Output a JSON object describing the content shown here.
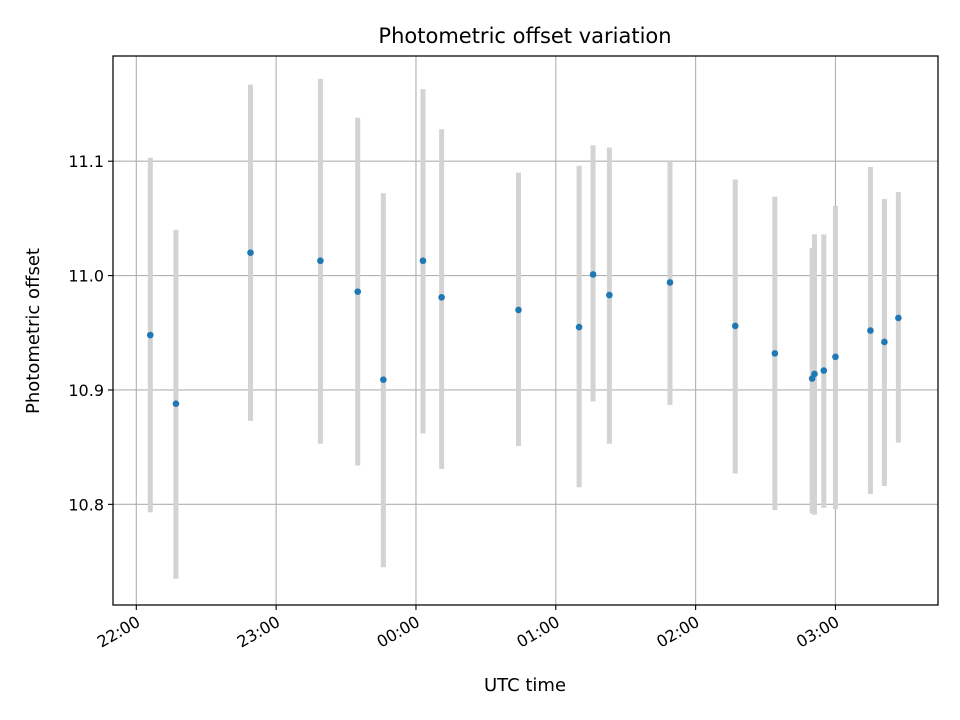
{
  "chart_data": {
    "type": "scatter",
    "title": "Photometric offset variation",
    "xlabel": "UTC time",
    "ylabel": "Photometric offset",
    "x_axis_type": "time",
    "xlim": [
      "21:50",
      "03:44"
    ],
    "ylim": [
      10.712,
      11.192
    ],
    "x_ticks": [
      "22:00",
      "23:00",
      "00:00",
      "01:00",
      "02:00",
      "03:00"
    ],
    "y_ticks": [
      10.8,
      10.9,
      11.0,
      11.1
    ],
    "y_tick_labels": [
      "10.8",
      "10.9",
      "11.0",
      "11.1"
    ],
    "grid": true,
    "colors": {
      "points": "#1f77b4",
      "error_bars": "#d3d3d3",
      "grid": "#b0b0b0",
      "frame": "#000000"
    },
    "points": [
      {
        "time": "22:06",
        "y": 10.948,
        "err_low": 10.793,
        "err_high": 11.103
      },
      {
        "time": "22:17",
        "y": 10.888,
        "err_low": 10.735,
        "err_high": 11.04
      },
      {
        "time": "22:49",
        "y": 11.02,
        "err_low": 10.873,
        "err_high": 11.167
      },
      {
        "time": "23:19",
        "y": 11.013,
        "err_low": 10.853,
        "err_high": 11.172
      },
      {
        "time": "23:35",
        "y": 10.986,
        "err_low": 10.834,
        "err_high": 11.138
      },
      {
        "time": "23:46",
        "y": 10.909,
        "err_low": 10.745,
        "err_high": 11.072
      },
      {
        "time": "00:03",
        "y": 11.013,
        "err_low": 10.862,
        "err_high": 11.163
      },
      {
        "time": "00:11",
        "y": 10.981,
        "err_low": 10.831,
        "err_high": 11.128
      },
      {
        "time": "00:44",
        "y": 10.97,
        "err_low": 10.851,
        "err_high": 11.09
      },
      {
        "time": "01:10",
        "y": 10.955,
        "err_low": 10.815,
        "err_high": 11.096
      },
      {
        "time": "01:16",
        "y": 11.001,
        "err_low": 10.89,
        "err_high": 11.114
      },
      {
        "time": "01:23",
        "y": 10.983,
        "err_low": 10.853,
        "err_high": 11.112
      },
      {
        "time": "01:49",
        "y": 10.994,
        "err_low": 10.887,
        "err_high": 11.1
      },
      {
        "time": "02:17",
        "y": 10.956,
        "err_low": 10.827,
        "err_high": 11.084
      },
      {
        "time": "02:34",
        "y": 10.932,
        "err_low": 10.795,
        "err_high": 11.069
      },
      {
        "time": "02:50",
        "y": 10.91,
        "err_low": 10.792,
        "err_high": 11.024
      },
      {
        "time": "02:51",
        "y": 10.914,
        "err_low": 10.791,
        "err_high": 11.036
      },
      {
        "time": "02:55",
        "y": 10.917,
        "err_low": 10.797,
        "err_high": 11.036
      },
      {
        "time": "03:00",
        "y": 10.929,
        "err_low": 10.796,
        "err_high": 11.061
      },
      {
        "time": "03:15",
        "y": 10.952,
        "err_low": 10.809,
        "err_high": 11.095
      },
      {
        "time": "03:21",
        "y": 10.942,
        "err_low": 10.816,
        "err_high": 11.067
      },
      {
        "time": "03:27",
        "y": 10.963,
        "err_low": 10.854,
        "err_high": 11.073
      }
    ]
  }
}
